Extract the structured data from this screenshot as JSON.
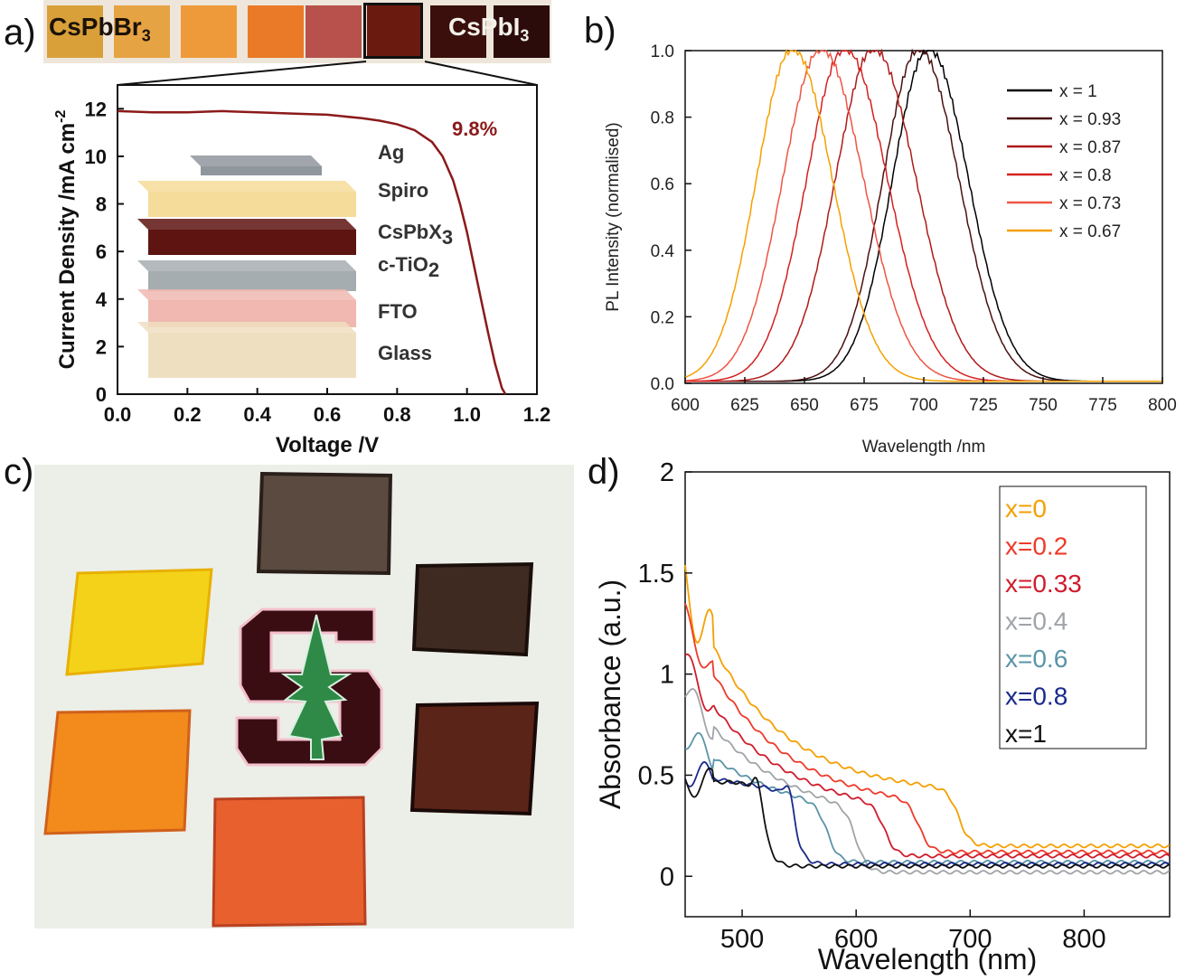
{
  "panel_labels": {
    "a": "a)",
    "b": "b)",
    "c": "c)",
    "d": "d)"
  },
  "swatch_strip": {
    "left_label_main": "CsPbBr",
    "left_label_sub": "3",
    "right_label_main": "CsPbI",
    "right_label_sub": "3",
    "swatch_colors": [
      "#d9a03a",
      "#e6a343",
      "#ef9a3a",
      "#ea7a28",
      "#b8514c",
      "#6b1a10",
      "#3a0f0c",
      "#2b0c0b"
    ]
  },
  "device_stack": {
    "layers": [
      {
        "label": "Ag",
        "sub": "",
        "color": "#8f969c"
      },
      {
        "label": "Spiro",
        "sub": "",
        "color": "#f6dc9a"
      },
      {
        "label": "CsPbX",
        "sub": "3",
        "color": "#5e1410"
      },
      {
        "label": "c-TiO",
        "sub": "2",
        "color": "#a6adb0"
      },
      {
        "label": "FTO",
        "sub": "",
        "color": "#f0b8b0"
      },
      {
        "label": "Glass",
        "sub": "",
        "color": "#eedfc1"
      }
    ]
  },
  "chart_data": [
    {
      "panel": "a",
      "type": "line",
      "xlabel": "Voltage /V",
      "ylabel_main": "Current Density /mA cm",
      "ylabel_sup": "-2",
      "xlim": [
        0,
        1.2
      ],
      "ylim": [
        0,
        13
      ],
      "xticks": [
        "0.0",
        "0.2",
        "0.4",
        "0.6",
        "0.8",
        "1.0",
        "1.2"
      ],
      "yticks": [
        "0",
        "2",
        "4",
        "6",
        "8",
        "10",
        "12"
      ],
      "annotation": "9.8%",
      "color": "#8b1a1a",
      "series": [
        {
          "x": [
            0,
            0.1,
            0.2,
            0.3,
            0.4,
            0.5,
            0.6,
            0.7,
            0.75,
            0.8,
            0.85,
            0.9,
            0.93,
            0.96,
            0.98,
            1.0,
            1.02,
            1.04,
            1.06,
            1.08,
            1.1,
            1.11
          ],
          "y": [
            11.9,
            11.85,
            11.85,
            11.9,
            11.85,
            11.8,
            11.75,
            11.6,
            11.5,
            11.35,
            11.1,
            10.6,
            10.0,
            9.0,
            8.0,
            6.8,
            5.4,
            4.0,
            2.6,
            1.3,
            0.25,
            0
          ]
        }
      ]
    },
    {
      "panel": "b",
      "type": "line",
      "xlabel": "Wavelength /nm",
      "ylabel": "PL Intensity (normalised)",
      "xlim": [
        600,
        800
      ],
      "ylim": [
        0,
        1.0
      ],
      "xticks": [
        "600",
        "625",
        "650",
        "675",
        "700",
        "725",
        "750",
        "775",
        "800"
      ],
      "yticks": [
        "0.0",
        "0.2",
        "0.4",
        "0.6",
        "0.8",
        "1.0"
      ],
      "series": [
        {
          "name": "x = 1",
          "color": "#000000",
          "peak": 702,
          "width": 16
        },
        {
          "name": "x = 0.93",
          "color": "#4a1010",
          "peak": 698,
          "width": 16
        },
        {
          "name": "x = 0.87",
          "color": "#b01a1a",
          "peak": 679,
          "width": 17
        },
        {
          "name": "x = 0.8",
          "color": "#d62020",
          "peak": 667,
          "width": 17
        },
        {
          "name": "x = 0.73",
          "color": "#ee5544",
          "peak": 657,
          "width": 17
        },
        {
          "name": "x = 0.67",
          "color": "#f5a000",
          "peak": 645,
          "width": 16
        }
      ]
    },
    {
      "panel": "d",
      "type": "line",
      "xlabel": "Wavelength (nm)",
      "ylabel": "Absorbance (a.u.)",
      "xlim": [
        450,
        875
      ],
      "ylim": [
        -0.2,
        2.0
      ],
      "xticks": [
        "500",
        "600",
        "700",
        "800"
      ],
      "yticks": [
        "0",
        "0.5",
        "1",
        "1.5",
        "2"
      ],
      "series": [
        {
          "name": "x=0",
          "color": "#f5a000",
          "start": 1.45,
          "edge": 690,
          "shoulder": 0.4,
          "tail": 0.15
        },
        {
          "name": "x=0.2",
          "color": "#ee3a2a",
          "start": 1.28,
          "edge": 655,
          "shoulder": 0.32,
          "tail": 0.12
        },
        {
          "name": "x=0.33",
          "color": "#d01c2c",
          "start": 1.06,
          "edge": 625,
          "shoulder": 0.28,
          "tail": 0.1
        },
        {
          "name": "x=0.4",
          "color": "#a0a4a8",
          "start": 0.92,
          "edge": 600,
          "shoulder": 0.24,
          "tail": 0.02
        },
        {
          "name": "x=0.6",
          "color": "#5a94a8",
          "start": 0.7,
          "edge": 575,
          "shoulder": 0.26,
          "tail": 0.07
        },
        {
          "name": "x=0.8",
          "color": "#1a2a8a",
          "start": 0.52,
          "edge": 545,
          "shoulder": 0.38,
          "tail": 0.06
        },
        {
          "name": "x=1",
          "color": "#101010",
          "start": 0.46,
          "edge": 518,
          "shoulder": 0.48,
          "tail": 0.05
        }
      ]
    }
  ]
}
